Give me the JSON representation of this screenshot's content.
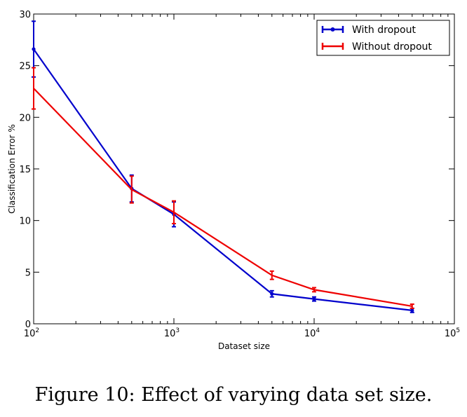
{
  "caption": "Figure 10: Effect of varying data set size.",
  "chart_data": {
    "type": "line",
    "xscale": "log",
    "xlim": [
      100,
      100000
    ],
    "ylim": [
      0,
      30
    ],
    "xlabel": "Dataset size",
    "ylabel": "Classification Error %",
    "x_ticks": [
      {
        "value": 100,
        "base": "10",
        "exp": "2"
      },
      {
        "value": 1000,
        "base": "10",
        "exp": "3"
      },
      {
        "value": 10000,
        "base": "10",
        "exp": "4"
      },
      {
        "value": 100000,
        "base": "10",
        "exp": "5"
      }
    ],
    "y_ticks": [
      0,
      5,
      10,
      15,
      20,
      25,
      30
    ],
    "legend_position": "top-right",
    "series": [
      {
        "name": "With dropout",
        "color": "#0000cc",
        "x": [
          100,
          500,
          1000,
          5000,
          10000,
          50000
        ],
        "y": [
          26.6,
          13.1,
          10.6,
          2.9,
          2.4,
          1.3
        ],
        "err": [
          2.7,
          1.3,
          1.2,
          0.3,
          0.2,
          0.2
        ]
      },
      {
        "name": "Without dropout",
        "color": "#ee0000",
        "x": [
          100,
          500,
          1000,
          5000,
          10000,
          50000
        ],
        "y": [
          22.8,
          13.0,
          10.8,
          4.7,
          3.3,
          1.7
        ],
        "err": [
          2.0,
          1.3,
          1.1,
          0.4,
          0.2,
          0.2
        ]
      }
    ]
  }
}
